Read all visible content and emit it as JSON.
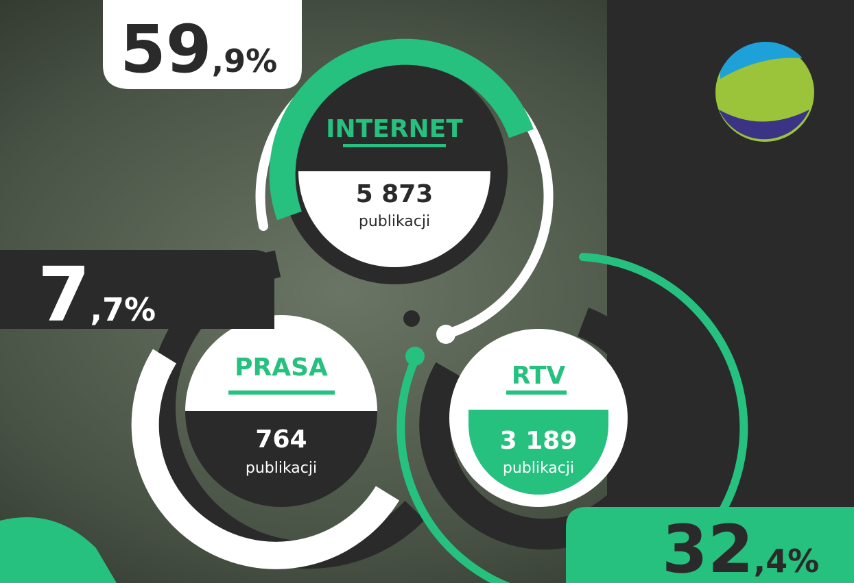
{
  "segments": [
    {
      "label": "INTERNET",
      "count": "5 873",
      "unit": "publikacji",
      "percent_whole": "59",
      "percent_fraction": ",9%"
    },
    {
      "label": "PRASA",
      "count": "764",
      "unit": "publikacji",
      "percent_whole": "7",
      "percent_fraction": ",7%"
    },
    {
      "label": "RTV",
      "count": "3 189",
      "unit": "publikacji",
      "percent_whole": "32",
      "percent_fraction": ",4%"
    }
  ]
}
